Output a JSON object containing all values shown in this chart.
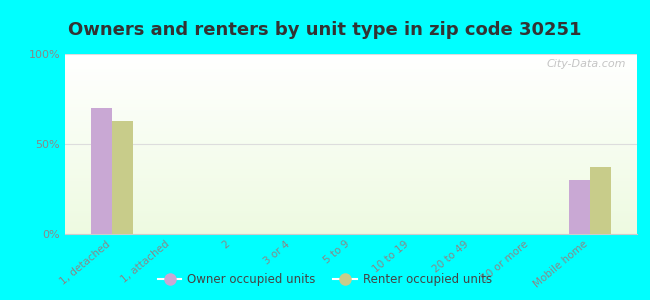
{
  "title": "Owners and renters by unit type in zip code 30251",
  "categories": [
    "1, detached",
    "1, attached",
    "2",
    "3 or 4",
    "5 to 9",
    "10 to 19",
    "20 to 49",
    "50 or more",
    "Mobile home"
  ],
  "owner_values": [
    70,
    0,
    0,
    0,
    0,
    0,
    0,
    0,
    30
  ],
  "renter_values": [
    63,
    0,
    0,
    0,
    0,
    0,
    0,
    0,
    37
  ],
  "owner_color": "#c9a8d4",
  "renter_color": "#c8cc8a",
  "background_color": "#00ffff",
  "ylim": [
    0,
    100
  ],
  "yticks": [
    0,
    50,
    100
  ],
  "ytick_labels": [
    "0%",
    "50%",
    "100%"
  ],
  "title_fontsize": 13,
  "title_color": "#333333",
  "legend_owner": "Owner occupied units",
  "legend_renter": "Renter occupied units",
  "watermark": "City-Data.com",
  "bar_width": 0.35,
  "tick_label_color": "#888888",
  "grid_color": "#dddddd"
}
